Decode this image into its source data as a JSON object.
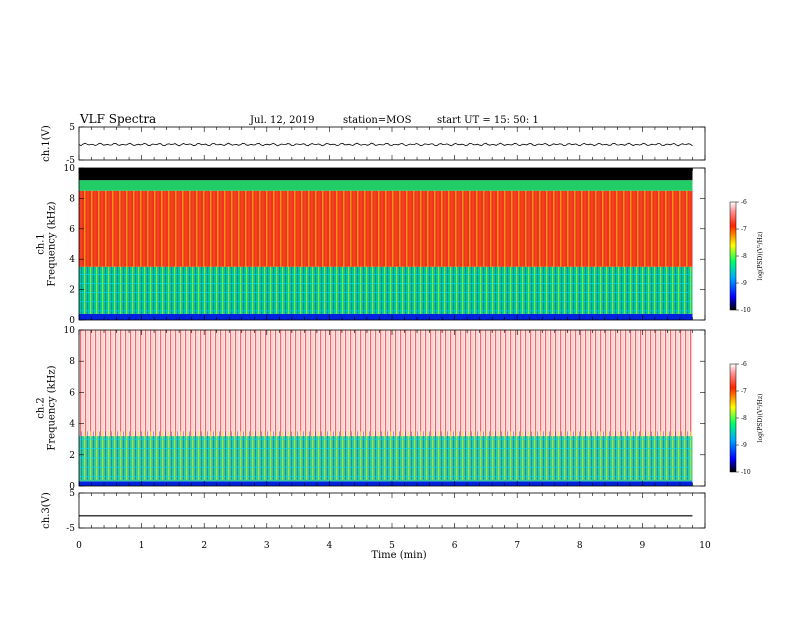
{
  "header": {
    "title": "VLF Spectra",
    "date": "Jul. 12, 2019",
    "station": "station=MOS",
    "start": "start UT = 15: 50: 1"
  },
  "chart_data": [
    {
      "type": "line",
      "title": "",
      "ylabel": "ch.1(V)",
      "ylim": [
        -5,
        5
      ],
      "yticks": [
        "5",
        "-5"
      ],
      "series": [
        {
          "values": [
            -0.3
          ]
        }
      ]
    },
    {
      "type": "heatmap",
      "ylabel": "ch.1\nFrequency (kHz)",
      "ylim": [
        0,
        10
      ],
      "xlim": [
        0,
        9.8
      ],
      "yticks": [
        "0",
        "2",
        "4",
        "6",
        "8",
        "10"
      ],
      "bands": [
        {
          "range": [
            0,
            0.4
          ],
          "color": "#0022dd"
        },
        {
          "range": [
            0.4,
            3.5
          ],
          "color": "#00c890"
        },
        {
          "range": [
            3.5,
            8.5
          ],
          "color": "#ee3322"
        },
        {
          "range": [
            8.5,
            9.2
          ],
          "color": "#22cc66"
        },
        {
          "range": [
            9.2,
            10
          ],
          "color": "#000000"
        }
      ],
      "colorbar": {
        "label": "log(PSD)(V²/Hz)",
        "ticks": [
          "-6",
          "-7",
          "-8",
          "-9",
          "-10"
        ],
        "range": [
          -10,
          -6
        ]
      }
    },
    {
      "type": "heatmap",
      "ylabel": "ch.2\nFrequency (kHz)",
      "ylim": [
        0,
        10
      ],
      "xlim": [
        0,
        9.8
      ],
      "yticks": [
        "0",
        "2",
        "4",
        "6",
        "8",
        "10"
      ],
      "bands": [
        {
          "range": [
            0,
            0.3
          ],
          "color": "#0022dd"
        },
        {
          "range": [
            0.3,
            3.2
          ],
          "color": "#33cc99"
        },
        {
          "range": [
            3.2,
            10
          ],
          "color": "#ffeaea"
        }
      ],
      "colorbar": {
        "label": "log(PSD)(V²/Hz)",
        "ticks": [
          "-6",
          "-7",
          "-8",
          "-9",
          "-10"
        ],
        "range": [
          -10,
          -6
        ]
      }
    },
    {
      "type": "line",
      "ylabel": "ch.3(V)",
      "ylim": [
        -5,
        5
      ],
      "yticks": [
        "5",
        "-5"
      ],
      "series": [
        {
          "values": [
            -1.5
          ]
        }
      ],
      "xlabel": "Time (min)",
      "xticks": [
        "0",
        "1",
        "2",
        "3",
        "4",
        "5",
        "6",
        "7",
        "8",
        "9",
        "10"
      ],
      "xlim": [
        0,
        10
      ]
    }
  ]
}
